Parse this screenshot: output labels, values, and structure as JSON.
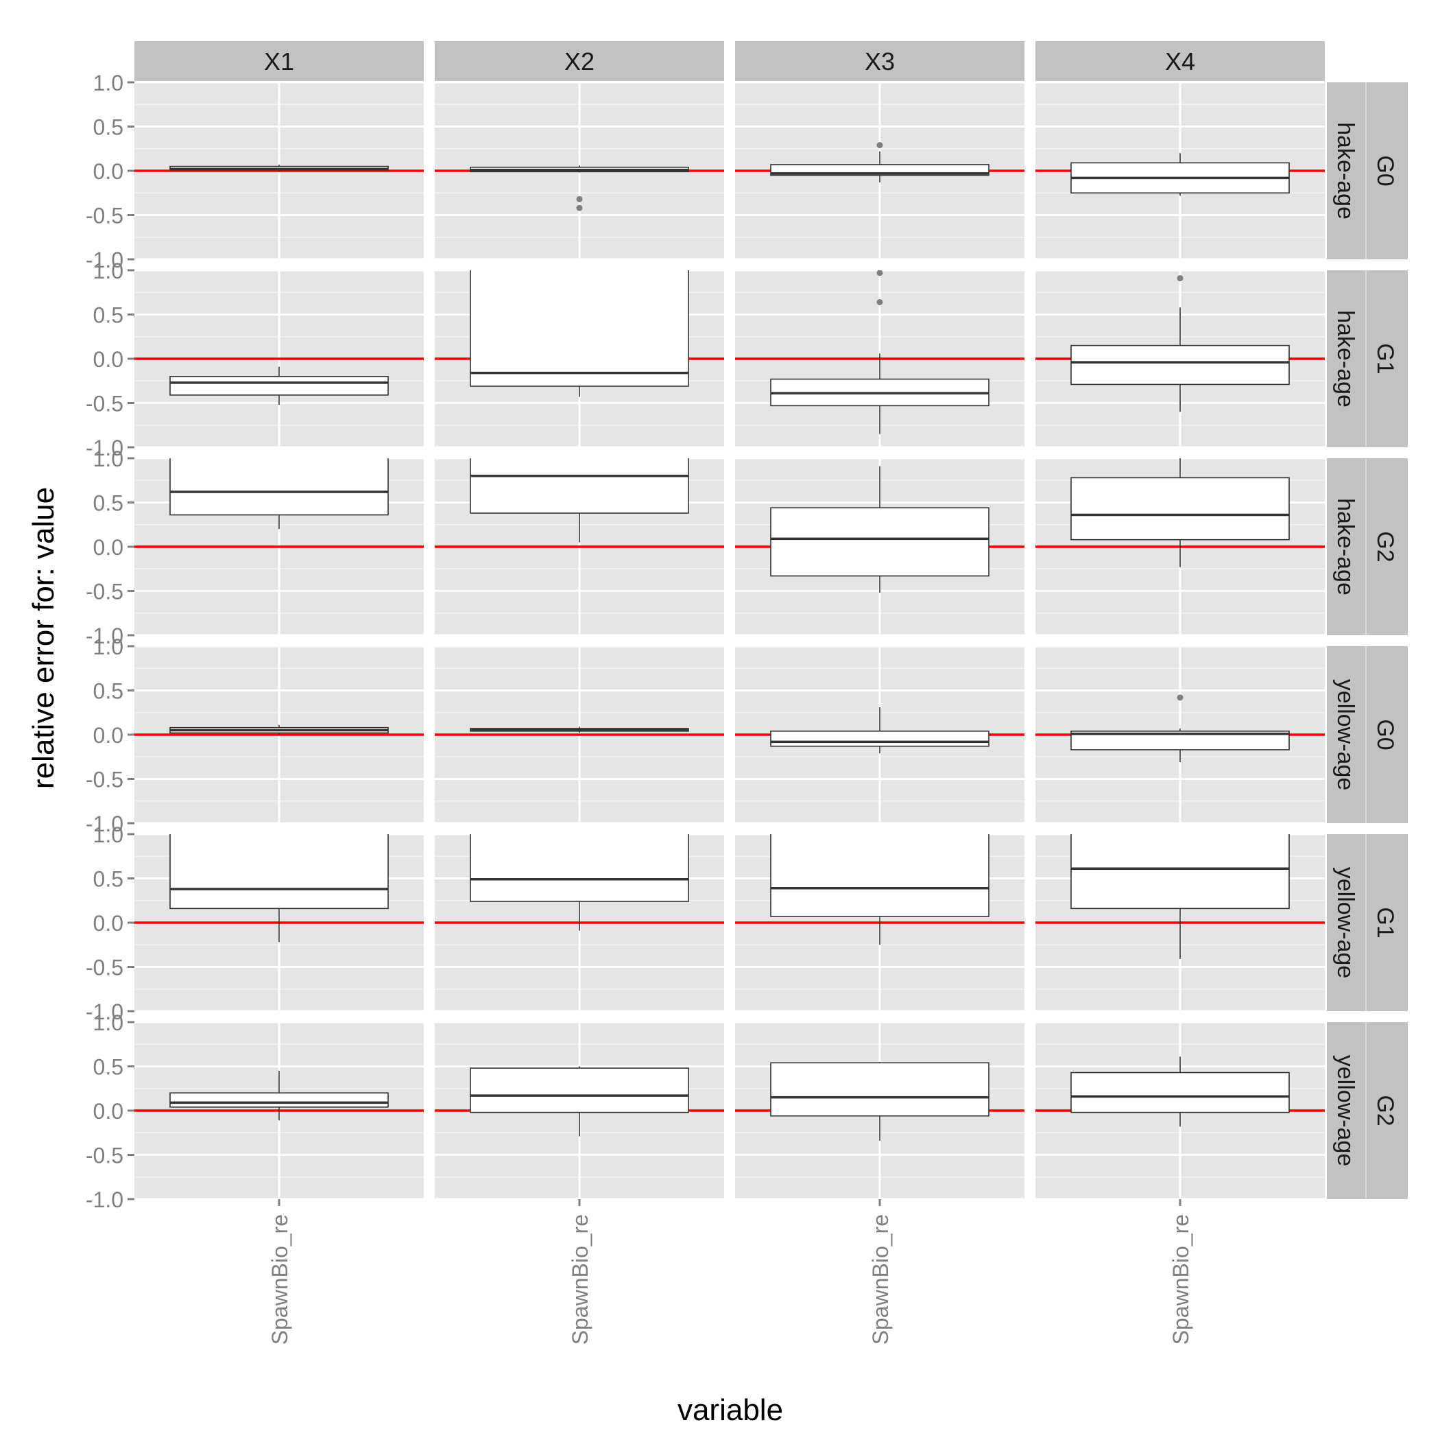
{
  "chart_data": {
    "type": "boxplot",
    "xlabel": "variable",
    "ylabel": "relative error for: value",
    "ylim": [
      -1.0,
      1.0
    ],
    "yticks": [
      -1.0,
      -0.5,
      0.0,
      0.5,
      1.0
    ],
    "ytick_labels": [
      "-1.0",
      "-0.5",
      "0.0",
      "0.5",
      "1.0"
    ],
    "reference_line": {
      "y": 0,
      "color": "#ff0000"
    },
    "grid": true,
    "colors": {
      "panel_bg": "#e5e5e5",
      "grid": "#ffffff",
      "strip_bg": "#c2c2c2",
      "box_fill": "#ffffff",
      "box_line": "#333333",
      "outlier": "#7f7f7f",
      "text": "#7f7f7f"
    },
    "columns": [
      "X1",
      "X2",
      "X3",
      "X4"
    ],
    "rows": [
      {
        "model": "hake-age",
        "group": "G0"
      },
      {
        "model": "hake-age",
        "group": "G1"
      },
      {
        "model": "hake-age",
        "group": "G2"
      },
      {
        "model": "yellow-age",
        "group": "G0"
      },
      {
        "model": "yellow-age",
        "group": "G1"
      },
      {
        "model": "yellow-age",
        "group": "G2"
      }
    ],
    "category": "SpawnBio_re",
    "panels": [
      [
        {
          "min": -0.01,
          "q1": 0.01,
          "median": 0.02,
          "q3": 0.05,
          "max": 0.07,
          "outliers": []
        },
        {
          "min": -0.02,
          "q1": -0.01,
          "median": 0.01,
          "q3": 0.04,
          "max": 0.06,
          "outliers": [
            -0.32,
            -0.42
          ]
        },
        {
          "min": -0.13,
          "q1": -0.05,
          "median": -0.03,
          "q3": 0.07,
          "max": 0.22,
          "outliers": [
            0.29
          ]
        },
        {
          "min": -0.28,
          "q1": -0.25,
          "median": -0.08,
          "q3": 0.09,
          "max": 0.2,
          "outliers": []
        }
      ],
      [
        {
          "min": -0.52,
          "q1": -0.41,
          "median": -0.27,
          "q3": -0.2,
          "max": -0.09,
          "outliers": []
        },
        {
          "min": -0.43,
          "q1": -0.31,
          "median": -0.16,
          "q3": 1.6,
          "max": 2.0,
          "outliers": []
        },
        {
          "min": -0.85,
          "q1": -0.53,
          "median": -0.39,
          "q3": -0.23,
          "max": 0.06,
          "outliers": [
            0.64,
            0.97
          ]
        },
        {
          "min": -0.6,
          "q1": -0.29,
          "median": -0.04,
          "q3": 0.15,
          "max": 0.58,
          "outliers": [
            0.91
          ]
        }
      ],
      [
        {
          "min": 0.2,
          "q1": 0.36,
          "median": 0.62,
          "q3": 1.2,
          "max": 1.6,
          "outliers": []
        },
        {
          "min": 0.05,
          "q1": 0.38,
          "median": 0.8,
          "q3": 1.2,
          "max": 1.6,
          "outliers": []
        },
        {
          "min": -0.52,
          "q1": -0.33,
          "median": 0.09,
          "q3": 0.44,
          "max": 0.91,
          "outliers": []
        },
        {
          "min": -0.23,
          "q1": 0.08,
          "median": 0.36,
          "q3": 0.78,
          "max": 1.2,
          "outliers": []
        }
      ],
      [
        {
          "min": 0.0,
          "q1": 0.02,
          "median": 0.05,
          "q3": 0.08,
          "max": 0.11,
          "outliers": []
        },
        {
          "min": 0.02,
          "q1": 0.04,
          "median": 0.06,
          "q3": 0.07,
          "max": 0.09,
          "outliers": []
        },
        {
          "min": -0.21,
          "q1": -0.13,
          "median": -0.08,
          "q3": 0.04,
          "max": 0.31,
          "outliers": []
        },
        {
          "min": -0.31,
          "q1": -0.17,
          "median": 0.01,
          "q3": 0.04,
          "max": 0.07,
          "outliers": [
            0.42
          ]
        }
      ],
      [
        {
          "min": -0.22,
          "q1": 0.16,
          "median": 0.38,
          "q3": 1.2,
          "max": 1.6,
          "outliers": []
        },
        {
          "min": -0.09,
          "q1": 0.24,
          "median": 0.49,
          "q3": 1.2,
          "max": 1.6,
          "outliers": []
        },
        {
          "min": -0.25,
          "q1": 0.07,
          "median": 0.39,
          "q3": 1.2,
          "max": 1.6,
          "outliers": []
        },
        {
          "min": -0.41,
          "q1": 0.16,
          "median": 0.61,
          "q3": 1.2,
          "max": 1.6,
          "outliers": []
        }
      ],
      [
        {
          "min": -0.11,
          "q1": 0.04,
          "median": 0.09,
          "q3": 0.2,
          "max": 0.45,
          "outliers": []
        },
        {
          "min": -0.29,
          "q1": -0.02,
          "median": 0.17,
          "q3": 0.48,
          "max": 0.5,
          "outliers": []
        },
        {
          "min": -0.34,
          "q1": -0.06,
          "median": 0.15,
          "q3": 0.54,
          "max": 0.55,
          "outliers": []
        },
        {
          "min": -0.18,
          "q1": -0.02,
          "median": 0.16,
          "q3": 0.43,
          "max": 0.61,
          "outliers": []
        }
      ]
    ]
  }
}
